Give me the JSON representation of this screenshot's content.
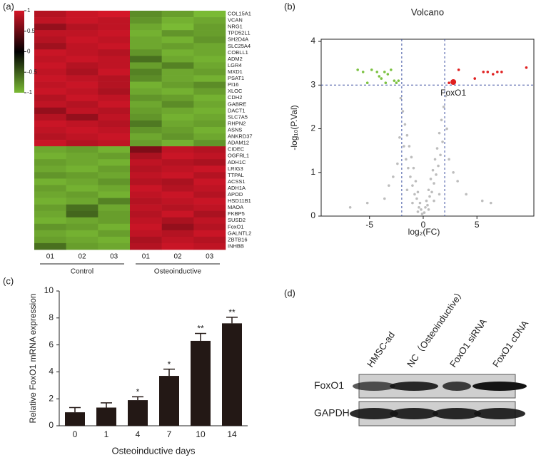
{
  "chart_data": [
    {
      "type": "heatmap",
      "label": "(a)",
      "rows": [
        "COL15A1",
        "VCAN",
        "NRG1",
        "TPD52L1",
        "SH2D4A",
        "SLC25A4",
        "COBLL1",
        "ADM2",
        "LGR4",
        "MXD1",
        "PSAT1",
        "PI16",
        "XLOC",
        "CDH2",
        "GABRE",
        "DACT1",
        "SLC7A5",
        "RHPN2",
        "ASNS",
        "ANKRD37",
        "ADAM12",
        "CIDEC",
        "OGFRL1",
        "ADH1C",
        "LRIG3",
        "TTPAL",
        "ACSS1",
        "ADH1A",
        "APOD",
        "HSD11B1",
        "MAOA",
        "FKBP5",
        "SUSD2",
        "FoxO1",
        "GALNTL2",
        "ZBTB16",
        "INHBB"
      ],
      "highlight": "FoxO1",
      "highlight_color": "#c0392b",
      "columns": [
        "01",
        "02",
        "03",
        "01",
        "02",
        "03"
      ],
      "groups": [
        "Control",
        "Osteoinductive"
      ],
      "zlim": [
        -1,
        1
      ],
      "colorbar_ticks": [
        1,
        0.5,
        0,
        -0.5,
        -1
      ],
      "values": [
        [
          0.85,
          0.95,
          1.0,
          -0.75,
          -0.85,
          -1.0
        ],
        [
          0.9,
          0.95,
          0.9,
          -0.8,
          -0.95,
          -0.9
        ],
        [
          0.7,
          0.85,
          0.9,
          -0.9,
          -1.0,
          -0.85
        ],
        [
          0.9,
          0.9,
          0.95,
          -0.95,
          -0.8,
          -0.85
        ],
        [
          0.85,
          0.95,
          0.9,
          -0.9,
          -0.95,
          -0.8
        ],
        [
          0.75,
          0.9,
          0.95,
          -0.9,
          -0.85,
          -0.9
        ],
        [
          0.95,
          0.9,
          0.85,
          -0.8,
          -0.95,
          -0.9
        ],
        [
          0.9,
          0.95,
          0.9,
          -0.6,
          -0.9,
          -0.95
        ],
        [
          0.95,
          0.85,
          0.9,
          -0.85,
          -0.7,
          -0.9
        ],
        [
          0.9,
          0.8,
          0.95,
          -0.7,
          -0.9,
          -0.85
        ],
        [
          0.95,
          0.9,
          0.85,
          -0.75,
          -0.9,
          -0.95
        ],
        [
          0.9,
          0.95,
          0.85,
          -0.95,
          -0.85,
          -0.75
        ],
        [
          0.95,
          0.9,
          0.8,
          -0.9,
          -0.95,
          -0.85
        ],
        [
          0.85,
          0.95,
          0.9,
          -0.8,
          -0.85,
          -0.95
        ],
        [
          0.9,
          0.85,
          0.95,
          -0.9,
          -0.75,
          -0.9
        ],
        [
          0.7,
          0.9,
          0.85,
          -0.85,
          -0.9,
          -0.95
        ],
        [
          0.85,
          0.7,
          0.9,
          -0.8,
          -0.95,
          -0.9
        ],
        [
          0.95,
          0.9,
          0.85,
          -0.65,
          -0.9,
          -0.85
        ],
        [
          0.9,
          0.95,
          0.9,
          -0.8,
          -0.85,
          -0.95
        ],
        [
          0.85,
          0.9,
          0.95,
          -0.9,
          -0.8,
          -0.9
        ],
        [
          0.95,
          0.85,
          0.9,
          -0.85,
          -0.95,
          -0.8
        ],
        [
          -0.9,
          -0.85,
          -0.95,
          0.6,
          0.9,
          0.85
        ],
        [
          -0.95,
          -0.9,
          -0.85,
          0.8,
          0.95,
          0.9
        ],
        [
          -0.85,
          -0.9,
          -0.95,
          0.9,
          0.85,
          0.8
        ],
        [
          -0.9,
          -0.95,
          -0.85,
          0.85,
          0.9,
          0.95
        ],
        [
          -0.8,
          -0.85,
          -0.9,
          0.9,
          0.95,
          0.85
        ],
        [
          -0.95,
          -0.9,
          -0.8,
          0.85,
          0.8,
          0.95
        ],
        [
          -0.85,
          -0.95,
          -0.9,
          0.95,
          0.85,
          0.9
        ],
        [
          -0.9,
          -0.85,
          -0.95,
          0.9,
          0.95,
          0.85
        ],
        [
          -0.95,
          -0.9,
          -0.7,
          0.85,
          0.9,
          0.95
        ],
        [
          -0.85,
          -0.6,
          -0.9,
          0.9,
          0.85,
          0.9
        ],
        [
          -0.9,
          -0.55,
          -0.85,
          0.85,
          0.95,
          0.8
        ],
        [
          -0.95,
          -0.9,
          -0.85,
          0.9,
          0.8,
          0.9
        ],
        [
          -0.8,
          -0.85,
          -0.95,
          0.95,
          0.7,
          0.85
        ],
        [
          -0.9,
          -0.95,
          -0.85,
          0.9,
          0.85,
          0.95
        ],
        [
          -0.85,
          -0.9,
          -0.95,
          0.8,
          0.9,
          0.85
        ],
        [
          -0.6,
          -0.85,
          -0.9,
          0.85,
          0.95,
          0.9
        ]
      ]
    },
    {
      "type": "scatter",
      "label": "(b)",
      "title": "Volcano",
      "x_label": "log₂(FC)",
      "y_label": "-log₁₀(P.Val)",
      "xlim": [
        -9.5,
        10.3
      ],
      "ylim": [
        0,
        4.05
      ],
      "xticks": [
        -5,
        0,
        5
      ],
      "yticks": [
        0,
        1,
        2,
        3,
        4
      ],
      "vlines": [
        -2,
        2
      ],
      "hlines": [
        3
      ],
      "series": [
        {
          "color": "#bdbdbd",
          "x": [
            -0.1,
            0.1,
            -0.3,
            0.3,
            -0.5,
            0.5,
            -0.7,
            0.7,
            -0.9,
            0.9,
            -1.1,
            1.1,
            -1.3,
            1.3,
            -1.5,
            1.5,
            -1.7,
            1.7,
            -1.9,
            1.9,
            -2.1,
            2.1,
            -0.2,
            0.2,
            -0.4,
            0.4,
            -0.6,
            0.6,
            -0.8,
            0.8,
            -1.0,
            1.0,
            -1.2,
            1.2,
            -1.4,
            1.4,
            -1.6,
            1.6,
            -1.8,
            1.8,
            -2.4,
            2.4,
            -2.8,
            2.8,
            -3.2,
            3.2,
            -0.5,
            0.5,
            -1.0,
            1.0,
            -1.5,
            1.5,
            -2.2,
            2.2,
            -3.6,
            4.0,
            -5.2,
            5.5,
            -6.8,
            6.3
          ],
          "y": [
            0.05,
            0.08,
            0.3,
            0.35,
            0.55,
            0.6,
            0.8,
            0.85,
            1.1,
            1.05,
            1.35,
            1.3,
            1.6,
            1.55,
            1.85,
            1.9,
            2.1,
            2.2,
            2.4,
            2.5,
            2.7,
            2.75,
            0.15,
            0.2,
            0.2,
            0.25,
            0.4,
            0.45,
            0.5,
            0.55,
            0.7,
            0.75,
            0.9,
            0.95,
            1.1,
            1.15,
            1.3,
            1.4,
            1.6,
            1.7,
            1.2,
            1.3,
            0.9,
            1.0,
            0.7,
            0.8,
            0.1,
            0.15,
            0.3,
            0.35,
            0.6,
            0.5,
            1.8,
            2.0,
            0.4,
            0.5,
            0.3,
            0.35,
            0.2,
            0.3
          ]
        },
        {
          "color": "#7cc242",
          "x": [
            -6.1,
            -5.6,
            -5.2,
            -4.8,
            -4.3,
            -3.9,
            -3.6,
            -3.3,
            -3.0,
            -2.7,
            -2.5,
            -2.3,
            -3.5,
            -4.1
          ],
          "y": [
            3.35,
            3.3,
            3.05,
            3.35,
            3.3,
            3.15,
            3.3,
            3.25,
            3.35,
            3.1,
            3.05,
            3.1,
            3.05,
            3.2
          ]
        },
        {
          "color": "#e02020",
          "x": [
            2.4,
            3.3,
            5.6,
            6.0,
            6.5,
            6.9,
            7.3,
            9.6,
            4.8
          ],
          "y": [
            3.05,
            3.35,
            3.3,
            3.3,
            3.25,
            3.3,
            3.3,
            3.4,
            3.15
          ]
        },
        {
          "name": "FoxO1",
          "color": "#e02020",
          "x": [
            2.8
          ],
          "y": [
            3.07
          ]
        }
      ]
    },
    {
      "type": "bar",
      "label": "(c)",
      "x_label": "Osteoinductive days",
      "y_label": "Relative FoxO1 mRNA expression",
      "categories": [
        "0",
        "1",
        "4",
        "7",
        "10",
        "14"
      ],
      "values": [
        1.0,
        1.35,
        1.9,
        3.7,
        6.3,
        7.6
      ],
      "error": [
        0.35,
        0.35,
        0.25,
        0.5,
        0.55,
        0.45
      ],
      "annotations": [
        null,
        null,
        "*",
        "*",
        "**",
        "**"
      ],
      "color": "#231815",
      "ylim": [
        0,
        10
      ],
      "yticks": [
        0,
        2,
        4,
        6,
        8,
        10
      ]
    },
    {
      "type": "blot",
      "label": "(d)",
      "lanes": [
        "HMSC-ad",
        "NC（Osteoinductive）",
        "FoxO1 siRNA",
        "FoxO1 cDNA"
      ],
      "rows": [
        "FoxO1",
        "GAPDH"
      ]
    }
  ]
}
